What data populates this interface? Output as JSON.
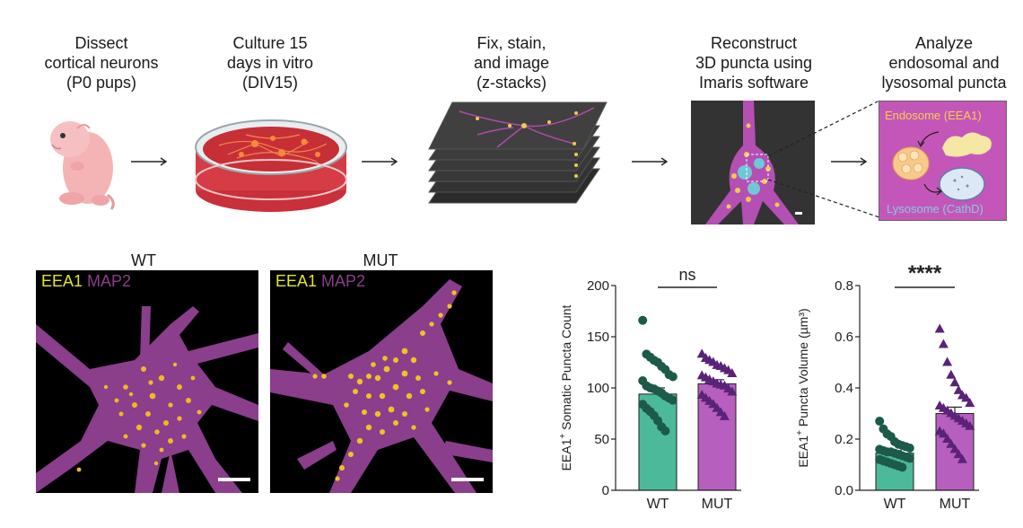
{
  "workflow": {
    "steps": [
      {
        "lines": [
          "Dissect",
          "cortical neurons",
          "(P0 pups)"
        ]
      },
      {
        "lines": [
          "Culture 15",
          "days in vitro",
          "(DIV15)"
        ]
      },
      {
        "lines": [
          "Fix, stain,",
          "and image",
          "(z-stacks)"
        ]
      },
      {
        "lines": [
          "Reconstruct",
          "3D puncta using",
          "Imaris software"
        ]
      },
      {
        "lines": [
          "Analyze",
          "endosomal and",
          "lysosomal puncta"
        ]
      }
    ],
    "analyze_box": {
      "endosome_label": "Endosome (EEA1)",
      "lysosome_label": "Lysosome (CathD)"
    }
  },
  "micrographs": [
    {
      "title": "WT",
      "stain1": "EEA1",
      "stain2": "MAP2"
    },
    {
      "title": "MUT",
      "stain1": "EEA1",
      "stain2": "MAP2"
    }
  ],
  "colors": {
    "wt": "#4cb99a",
    "wt_points": "#1c5a4a",
    "mut": "#b65fbf",
    "mut_points": "#5a2278",
    "eea1": "#e6e61e",
    "map2": "#8a3e8c"
  },
  "chart_data": [
    {
      "type": "bar",
      "categories": [
        "WT",
        "MUT"
      ],
      "ylabel_main": "EEA1",
      "ylabel_sup": "+",
      "ylabel_rest": " Somatic Puncta Count",
      "ylim": [
        0,
        200
      ],
      "yticks": [
        0,
        50,
        100,
        150,
        200
      ],
      "values": [
        94,
        104
      ],
      "errors": [
        6,
        4
      ],
      "significance": "ns",
      "points": {
        "WT": [
          166,
          133,
          130,
          127,
          125,
          121,
          118,
          113,
          111,
          107,
          102,
          100,
          99,
          97,
          95,
          92,
          90,
          88,
          84,
          80,
          77,
          73,
          68,
          62,
          58
        ],
        "MUT": [
          133,
          129,
          127,
          125,
          122,
          121,
          119,
          117,
          114,
          112,
          110,
          108,
          106,
          104,
          103,
          102,
          99,
          96,
          93,
          90,
          87,
          84,
          80,
          76,
          72
        ]
      }
    },
    {
      "type": "bar",
      "categories": [
        "WT",
        "MUT"
      ],
      "ylabel_main": "EEA1",
      "ylabel_sup": "+",
      "ylabel_rest": " Puncta Volume (µm³)",
      "ylim": [
        0,
        0.8
      ],
      "yticks": [
        0.0,
        0.2,
        0.4,
        0.6,
        0.8
      ],
      "yticklabels": [
        "0.0",
        "0.2",
        "0.4",
        "0.6",
        "0.8"
      ],
      "values": [
        0.145,
        0.3
      ],
      "errors": [
        0.01,
        0.025
      ],
      "significance": "****",
      "points": {
        "WT": [
          0.27,
          0.24,
          0.22,
          0.21,
          0.19,
          0.18,
          0.175,
          0.17,
          0.165,
          0.16,
          0.155,
          0.15,
          0.15,
          0.145,
          0.14,
          0.135,
          0.13,
          0.125,
          0.12,
          0.115,
          0.11,
          0.105,
          0.1,
          0.095,
          0.09
        ],
        "MUT": [
          0.63,
          0.57,
          0.5,
          0.45,
          0.42,
          0.39,
          0.37,
          0.36,
          0.34,
          0.33,
          0.32,
          0.31,
          0.3,
          0.29,
          0.28,
          0.27,
          0.26,
          0.25,
          0.23,
          0.22,
          0.2,
          0.18,
          0.16,
          0.14,
          0.12
        ]
      }
    }
  ]
}
